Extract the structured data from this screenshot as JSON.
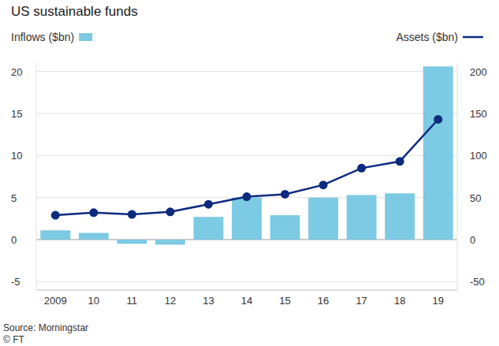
{
  "chart_data": {
    "type": "bar",
    "title": "US sustainable funds",
    "source": "Source: Morningstar",
    "credit": "© FT",
    "categories": [
      "2009",
      "10",
      "11",
      "12",
      "13",
      "14",
      "15",
      "16",
      "17",
      "18",
      "19"
    ],
    "series": [
      {
        "name": "Inflows ($bn)",
        "type": "bar",
        "color": "#7ccae3",
        "values": [
          1.1,
          0.8,
          -0.5,
          -0.6,
          2.7,
          5.0,
          2.9,
          5.0,
          5.3,
          5.5,
          20.6
        ]
      },
      {
        "name": "Assets ($bn)",
        "type": "line",
        "axis": "y2",
        "color": "#0c2a7e",
        "marker": "circle",
        "values": [
          29,
          32,
          30,
          33,
          42,
          51,
          54,
          65,
          85,
          93,
          143
        ]
      }
    ],
    "ylim": [
      -6,
      21
    ],
    "yticks": [
      -5,
      0,
      5,
      10,
      15,
      20
    ],
    "y2lim": [
      -60,
      210
    ],
    "y2ticks": [
      -50,
      0,
      50,
      100,
      150,
      200
    ],
    "grid": true,
    "legend": "top"
  }
}
